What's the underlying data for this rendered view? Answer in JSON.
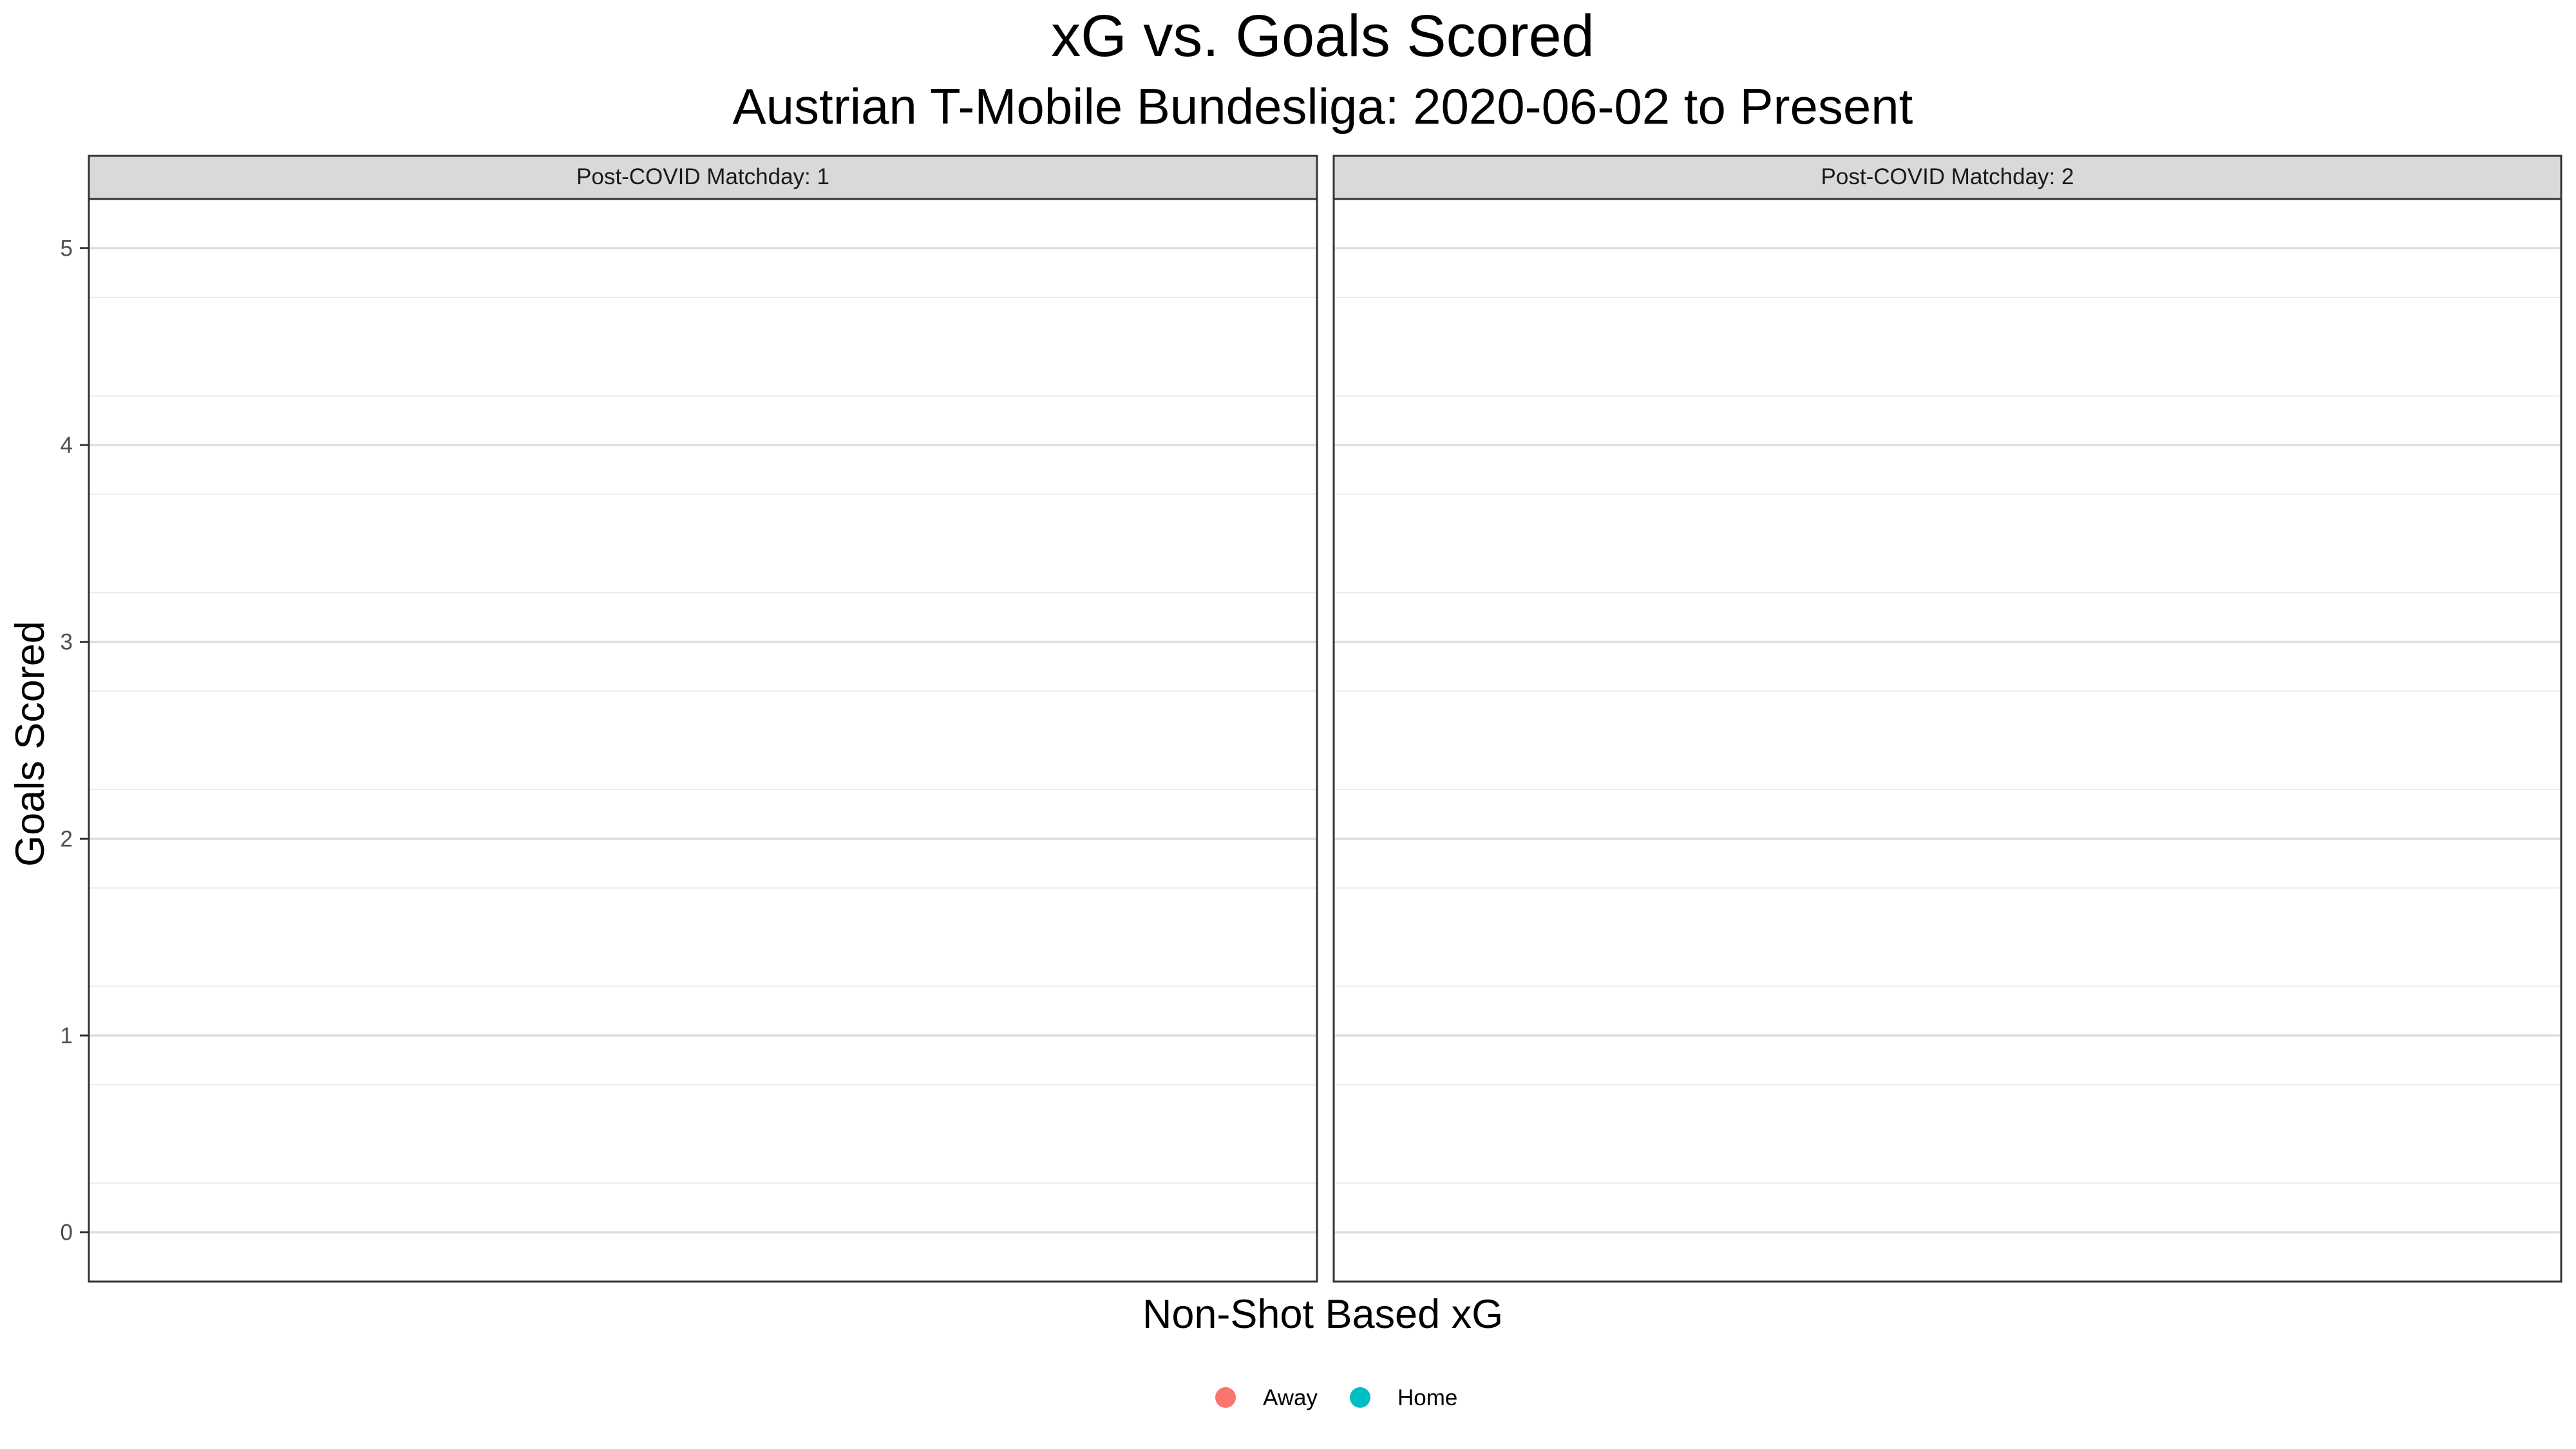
{
  "chart_data": {
    "type": "scatter",
    "title": "xG vs. Goals Scored",
    "subtitle": "Austrian T-Mobile Bundesliga: 2020-06-02 to Present",
    "xlabel": "Non-Shot Based xG",
    "ylabel": "Goals Scored",
    "ylim": [
      -0.25,
      5.25
    ],
    "y_ticks": [
      0,
      1,
      2,
      3,
      4,
      5
    ],
    "grid": true,
    "legend_position": "bottom",
    "facets": [
      {
        "label": "Post-COVID Matchday: 1",
        "points": []
      },
      {
        "label": "Post-COVID Matchday: 2",
        "points": []
      }
    ],
    "series": [
      {
        "name": "Away",
        "color": "#F8766D",
        "points": []
      },
      {
        "name": "Home",
        "color": "#00BFC4",
        "points": []
      }
    ]
  }
}
